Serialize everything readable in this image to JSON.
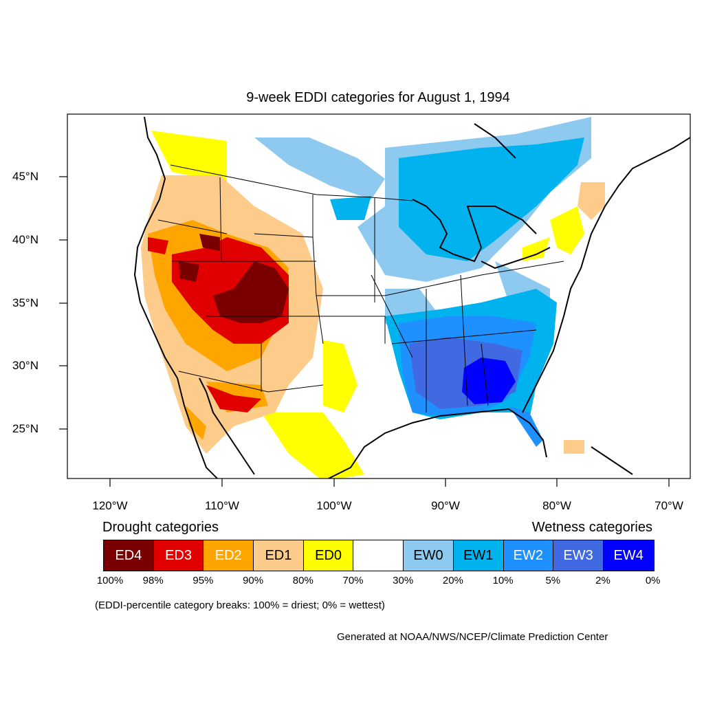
{
  "title": "9-week EDDI categories for August 1, 1994",
  "map": {
    "lon_labels": [
      "120°W",
      "110°W",
      "100°W",
      "90°W",
      "80°W",
      "70°W"
    ],
    "lat_labels": [
      "45°N",
      "40°N",
      "35°N",
      "30°N",
      "25°N"
    ]
  },
  "legend": {
    "drought_heading": "Drought categories",
    "wetness_heading": "Wetness categories",
    "categories": [
      {
        "label": "ED4",
        "color": "#7a0000",
        "text_color": "#ffffff"
      },
      {
        "label": "ED3",
        "color": "#e00000",
        "text_color": "#ffffff"
      },
      {
        "label": "ED2",
        "color": "#ffa500",
        "text_color": "#ffffff"
      },
      {
        "label": "ED1",
        "color": "#fdcc8a",
        "text_color": "#000000"
      },
      {
        "label": "ED0",
        "color": "#ffff00",
        "text_color": "#000000"
      },
      {
        "label": "",
        "color": "#ffffff",
        "text_color": "#000000"
      },
      {
        "label": "EW0",
        "color": "#8ec9ef",
        "text_color": "#000000"
      },
      {
        "label": "EW1",
        "color": "#00b2ee",
        "text_color": "#000000"
      },
      {
        "label": "EW2",
        "color": "#1e90ff",
        "text_color": "#ffffff"
      },
      {
        "label": "EW3",
        "color": "#4169e1",
        "text_color": "#ffffff"
      },
      {
        "label": "EW4",
        "color": "#0000ff",
        "text_color": "#ffffff"
      }
    ],
    "ticks": [
      "100%",
      "98%",
      "95%",
      "90%",
      "80%",
      "70%",
      "30%",
      "20%",
      "10%",
      "5%",
      "2%",
      "0%"
    ]
  },
  "note": "(EDDI-percentile category breaks: 100% = driest; 0% = wettest)",
  "credit": "Generated at NOAA/NWS/NCEP/Climate Prediction Center"
}
